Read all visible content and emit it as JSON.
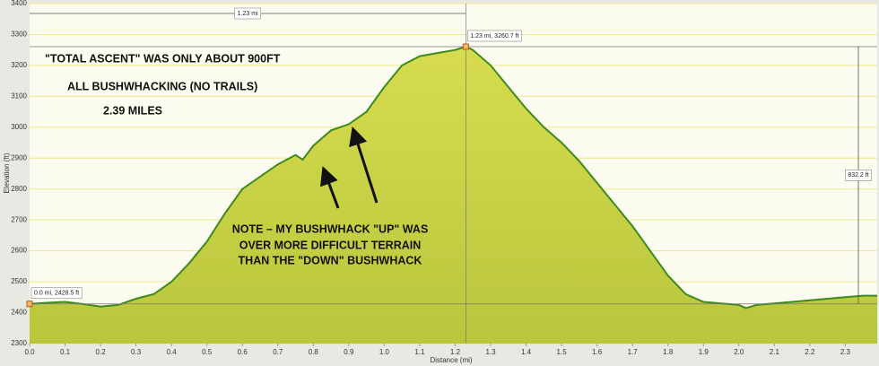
{
  "chart_data": {
    "type": "area",
    "x_label": "Distance (mi)",
    "y_label": "Elevation (ft)",
    "x": [
      0,
      0.05,
      0.1,
      0.15,
      0.2,
      0.25,
      0.3,
      0.35,
      0.4,
      0.45,
      0.5,
      0.55,
      0.6,
      0.65,
      0.7,
      0.75,
      0.77,
      0.8,
      0.85,
      0.9,
      0.95,
      1.0,
      1.05,
      1.1,
      1.15,
      1.2,
      1.23,
      1.25,
      1.3,
      1.35,
      1.4,
      1.45,
      1.5,
      1.55,
      1.6,
      1.65,
      1.7,
      1.75,
      1.8,
      1.85,
      1.9,
      1.95,
      2.0,
      2.02,
      2.05,
      2.1,
      2.15,
      2.2,
      2.25,
      2.3,
      2.35,
      2.39
    ],
    "series": [
      {
        "name": "Elevation",
        "color": "#3d8b1f",
        "fill": "#c9d24a",
        "values": [
          2428.5,
          2432,
          2435,
          2428,
          2420,
          2425,
          2445,
          2460,
          2500,
          2560,
          2630,
          2720,
          2800,
          2840,
          2880,
          2910,
          2895,
          2940,
          2990,
          3010,
          3050,
          3130,
          3200,
          3230,
          3240,
          3250,
          3260.7,
          3250,
          3200,
          3130,
          3060,
          3000,
          2950,
          2890,
          2820,
          2750,
          2680,
          2600,
          2520,
          2460,
          2435,
          2430,
          2425,
          2415,
          2425,
          2430,
          2435,
          2440,
          2445,
          2450,
          2455,
          2455
        ]
      }
    ],
    "xlim": [
      0,
      2.39
    ],
    "ylim": [
      2300,
      3400
    ],
    "xticks": [
      {
        "value": 0,
        "label": "0.0"
      },
      0.1,
      0.2,
      0.3,
      0.4,
      0.5,
      0.6,
      0.7,
      0.8,
      0.9,
      {
        "value": 1,
        "label": "1.0"
      },
      1.1,
      1.2,
      1.3,
      1.4,
      1.5,
      1.6,
      1.7,
      1.8,
      1.9,
      {
        "value": 2,
        "label": "2.0"
      },
      2.1,
      2.2,
      2.3
    ],
    "yticks": [
      2300,
      2400,
      2500,
      2600,
      2700,
      2800,
      2900,
      3000,
      3100,
      3200,
      3300,
      3400
    ],
    "grid": true,
    "markers": [
      {
        "x": 0,
        "y": 2428.5,
        "label": "0.0 mi, 2428.5 ft"
      },
      {
        "x": 1.23,
        "y": 3260.7,
        "label": "1.23 mi, 3260.7 ft"
      }
    ],
    "span_x": {
      "from": 0,
      "to": 1.23,
      "label": "1.23 mi"
    },
    "span_y": {
      "from": 2428.5,
      "to": 3260.7,
      "label": "832.2 ft"
    },
    "annotations": [
      "\"TOTAL  ASCENT\"  WAS ONLY ABOUT  900FT",
      "ALL  BUSHWHACKING (NO TRAILS)",
      "2.39 MILES",
      "NOTE – MY BUSHWHACK \"UP\" WAS",
      "OVER  MORE DIFFICULT  TERRAIN",
      "THAN THE \"DOWN\"  BUSHWHACK"
    ]
  }
}
